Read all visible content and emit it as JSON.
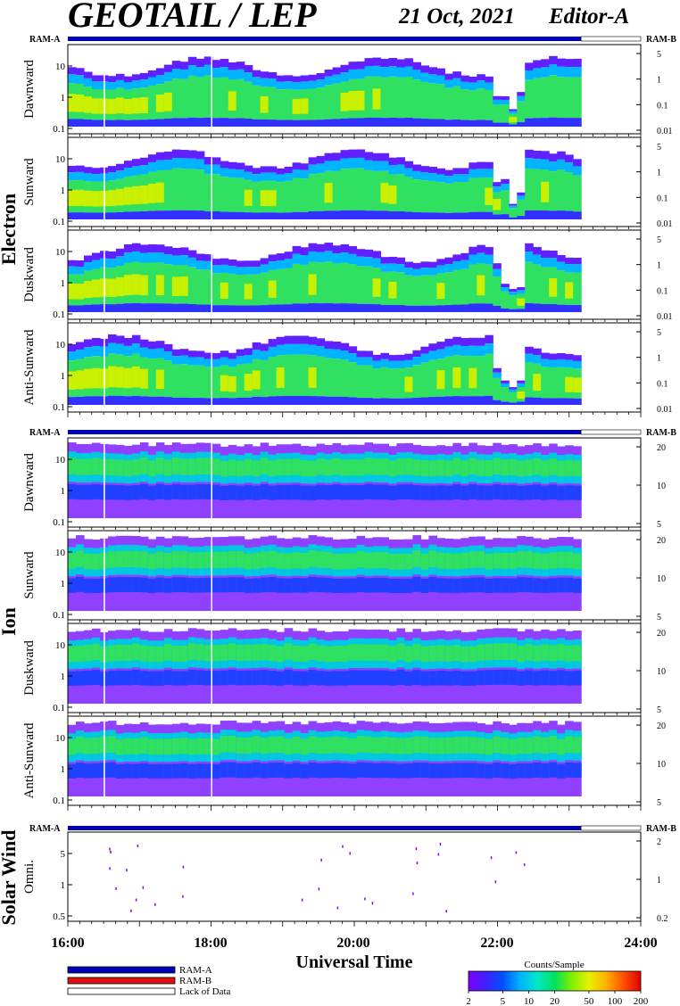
{
  "header": {
    "title": "GEOTAIL / LEP",
    "date": "21 Oct, 2021",
    "editor": "Editor-A"
  },
  "ram_labels": {
    "left": "RAM-A",
    "right": "RAM-B"
  },
  "colors": {
    "ram_a": "#0000b4",
    "ram_b": "#e01010",
    "lack": "#ffffff",
    "colorbar": [
      "#8000ff",
      "#4020ff",
      "#0050ff",
      "#00b4ff",
      "#00e8c8",
      "#00e060",
      "#80f000",
      "#e8f000",
      "#ffb000",
      "#ff5000",
      "#e00000"
    ]
  },
  "chart_data": [
    {
      "type": "heatmap",
      "group": "Electron",
      "panels": [
        {
          "name": "Dawnward",
          "left_ticks": [
            "10",
            "1",
            "0.1"
          ],
          "right_ticks": [
            "5",
            "1",
            "0.1",
            "0.01"
          ]
        },
        {
          "name": "Sunward",
          "left_ticks": [
            "10",
            "1",
            "0.1"
          ],
          "right_ticks": [
            "5",
            "1",
            "0.1",
            "0.01"
          ]
        },
        {
          "name": "Duskward",
          "left_ticks": [
            "10",
            "1",
            "0.1"
          ],
          "right_ticks": [
            "5",
            "1",
            "0.1",
            "0.01"
          ]
        },
        {
          "name": "Anti-Sunward",
          "left_ticks": [
            "10",
            "1",
            "0.1"
          ],
          "right_ticks": [
            "5",
            "1",
            "0.1",
            "0.01"
          ]
        }
      ],
      "xlim": [
        "16:00",
        "24:00"
      ],
      "data_end": "23:10"
    },
    {
      "type": "heatmap",
      "group": "Ion",
      "panels": [
        {
          "name": "Dawnward",
          "left_ticks": [
            "10",
            "1",
            "0.1"
          ],
          "right_ticks": [
            "20",
            "10",
            "5"
          ]
        },
        {
          "name": "Sunward",
          "left_ticks": [
            "10",
            "1",
            "0.1"
          ],
          "right_ticks": [
            "20",
            "10",
            "5"
          ]
        },
        {
          "name": "Duskward",
          "left_ticks": [
            "10",
            "1",
            "0.1"
          ],
          "right_ticks": [
            "20",
            "10",
            "5"
          ]
        },
        {
          "name": "Anti-Sunward",
          "left_ticks": [
            "10",
            "1",
            "0.1"
          ],
          "right_ticks": [
            "20",
            "10",
            "5"
          ]
        }
      ],
      "xlim": [
        "16:00",
        "24:00"
      ],
      "data_end": "23:10"
    },
    {
      "type": "scatter",
      "group": "Solar Wind",
      "panels": [
        {
          "name": "Omni.",
          "left_ticks": [
            "5",
            "1",
            "0.5"
          ],
          "right_ticks": [
            "2",
            "1",
            "0.2"
          ]
        }
      ],
      "xlim": [
        "16:00",
        "24:00"
      ],
      "data_end": "23:10"
    }
  ],
  "x_axis": {
    "ticks": [
      "16:00",
      "18:00",
      "20:00",
      "22:00",
      "24:00"
    ],
    "label": "Universal Time"
  },
  "legend": {
    "items": [
      "RAM-A",
      "RAM-B",
      "Lack of Data"
    ]
  },
  "colorbar": {
    "title": "Counts/Sample",
    "ticks": [
      "2",
      "5",
      "10",
      "20",
      "50",
      "100",
      "200"
    ]
  }
}
